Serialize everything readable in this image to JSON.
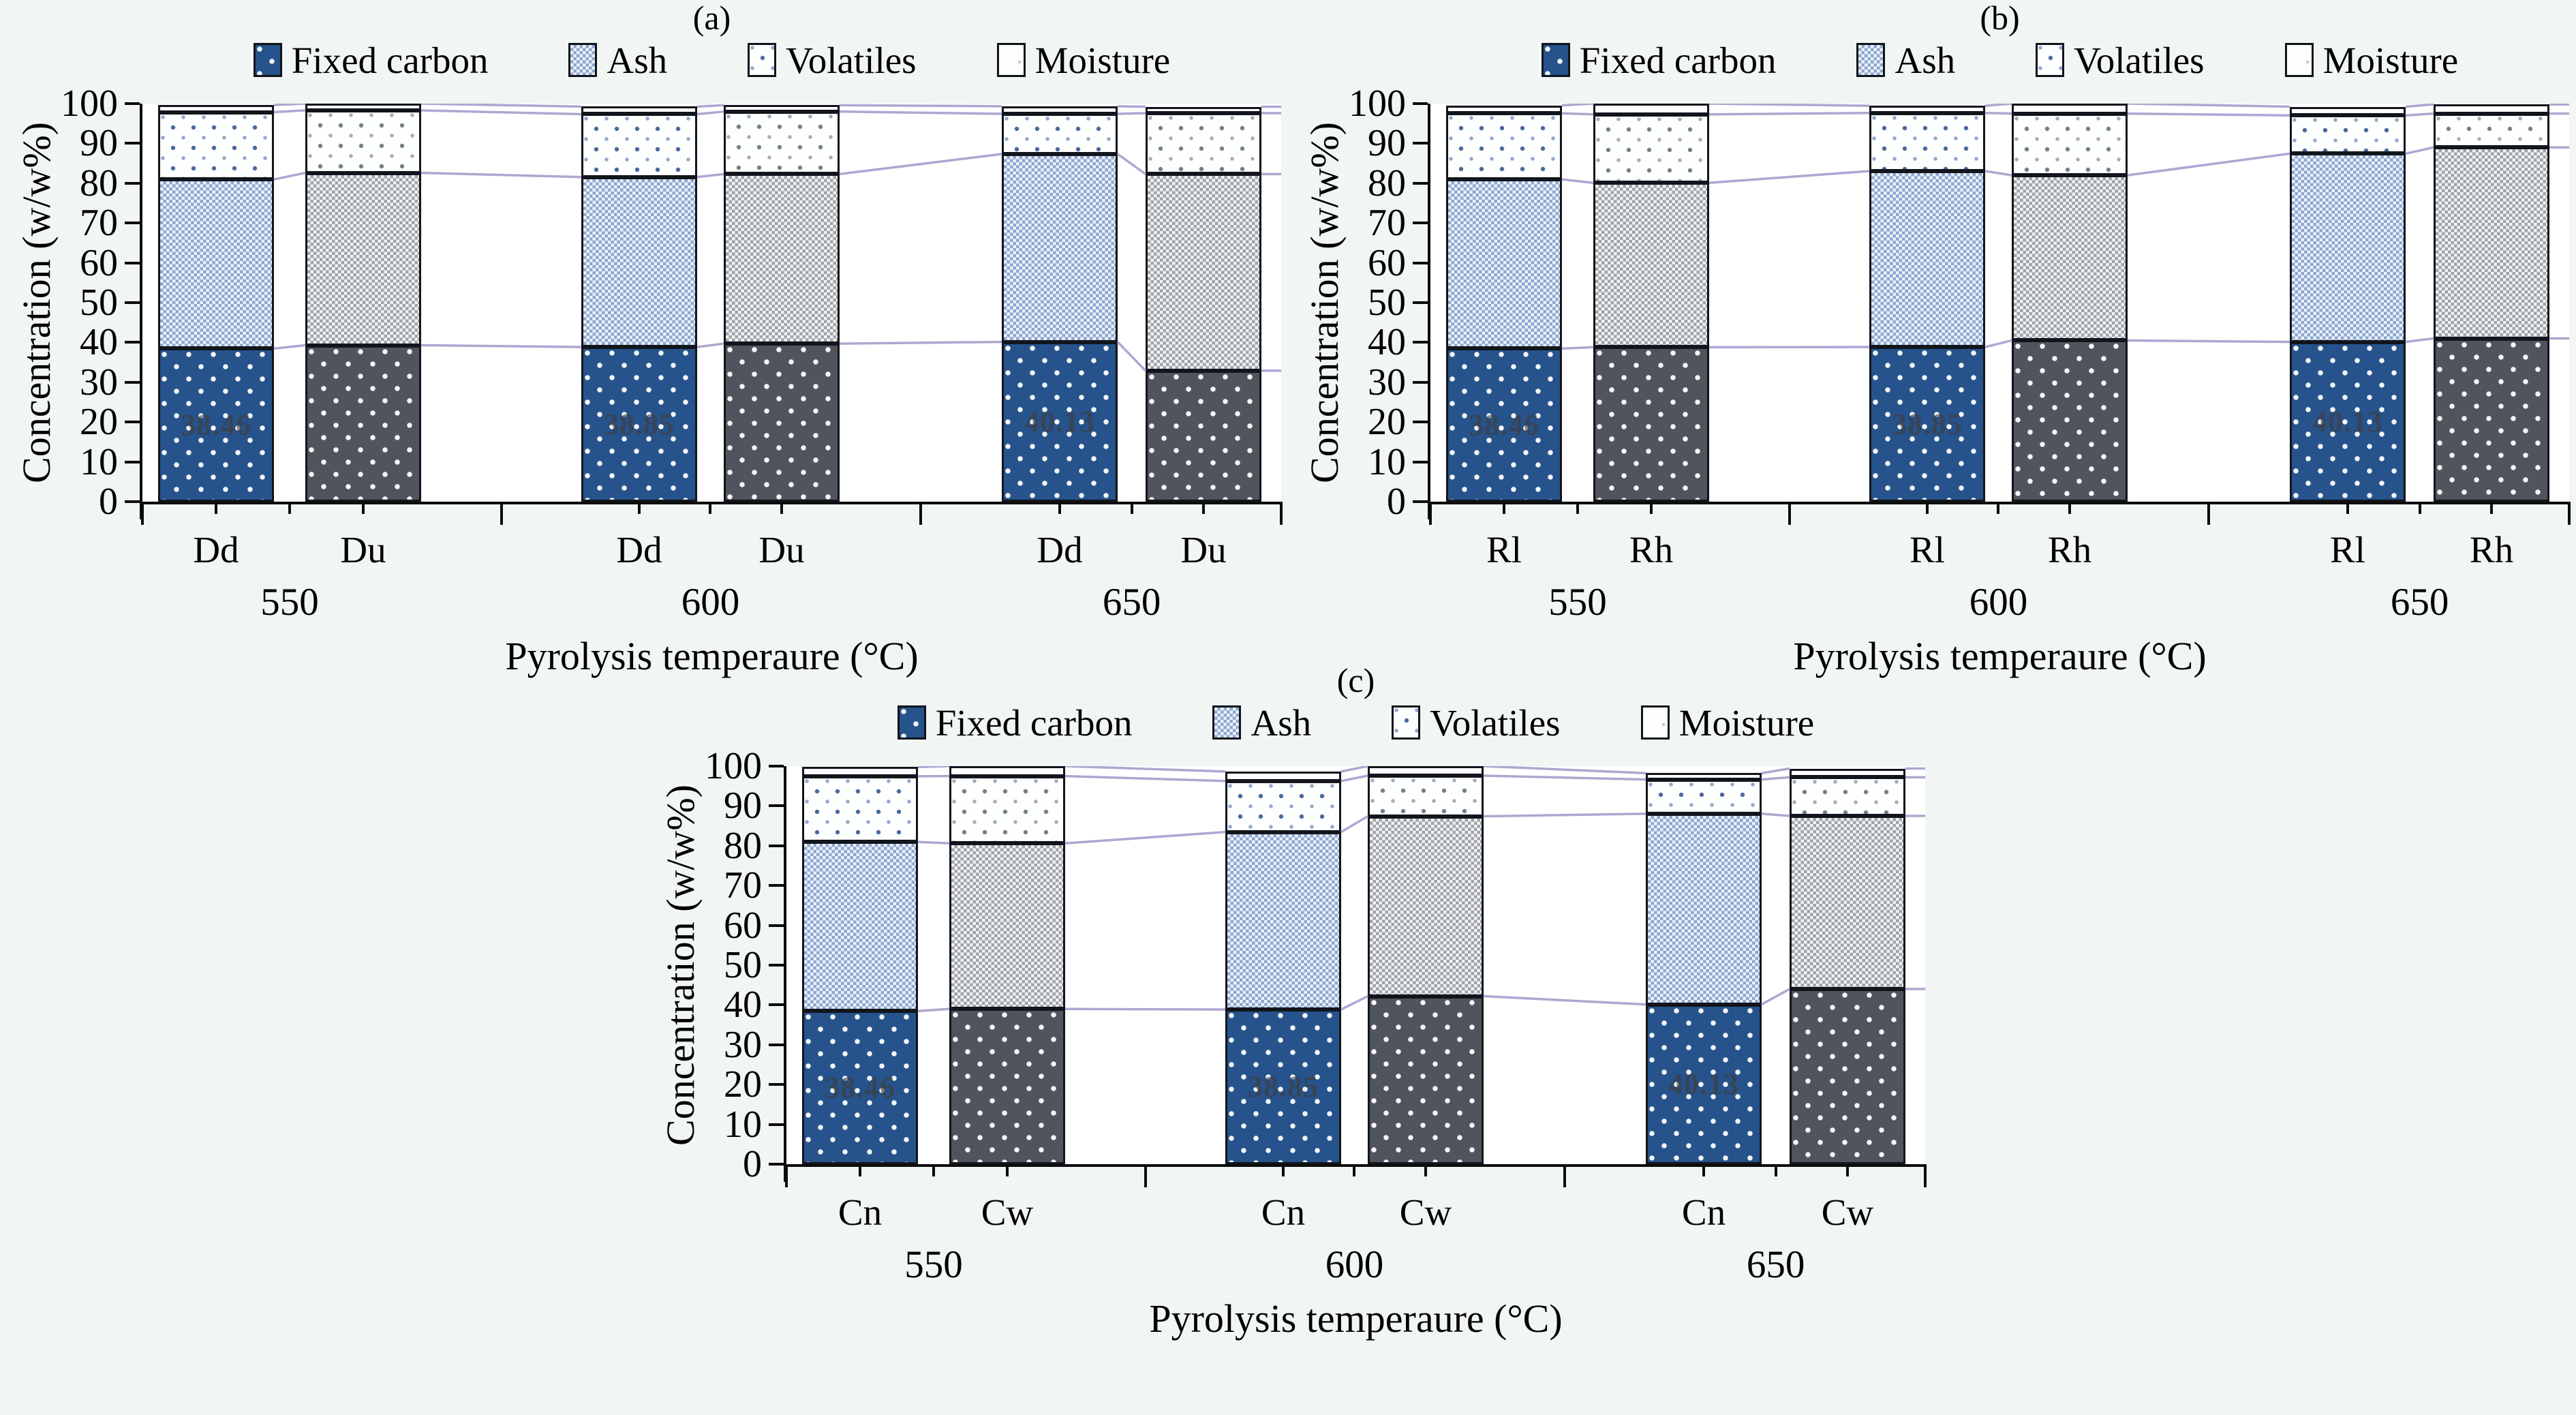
{
  "colors": {
    "background": "#F1F5F3",
    "plot_background": "#FFFFFF",
    "axis": "#0C0C0C",
    "fixed_carbon_blue": "#26538B",
    "fixed_carbon_gray": "#50555D",
    "ash_blue": "#8CA8D0",
    "ash_gray": "#9FA4A9",
    "volatiles_dot_blue": "#49679C",
    "volatiles_dot_gray": "#767D88",
    "connector_line": "#A79DCE"
  },
  "chart_data": [
    {
      "panel_label": "(a)",
      "type": "bar",
      "stacked": true,
      "grid": false,
      "legend_position": "top",
      "legend": [
        "Fixed carbon",
        "Ash",
        "Volatiles",
        "Moisture"
      ],
      "series_order": [
        "fixed_carbon",
        "ash",
        "volatiles",
        "moisture"
      ],
      "xlabel": "Pyrolysis temperaure (°C)",
      "ylabel": "Concentration (w/w%)",
      "ylim": [
        0,
        100
      ],
      "yticks": [
        "0",
        "10",
        "20",
        "30",
        "40",
        "50",
        "60",
        "70",
        "80",
        "90",
        "100"
      ],
      "groups": [
        {
          "category": "550",
          "bars": [
            {
              "label": "Dd",
              "palette": "blue",
              "fc_label": "38.46",
              "values": {
                "fixed_carbon": 38.46,
                "ash": 42.5,
                "volatiles": 16.9,
                "moisture": 1.8
              }
            },
            {
              "label": "Du",
              "palette": "gray",
              "fc_label": "",
              "values": {
                "fixed_carbon": 39.3,
                "ash": 43.3,
                "volatiles": 15.7,
                "moisture": 1.7
              }
            }
          ]
        },
        {
          "category": "600",
          "bars": [
            {
              "label": "Dd",
              "palette": "blue",
              "fc_label": "38.85",
              "values": {
                "fixed_carbon": 38.85,
                "ash": 42.7,
                "volatiles": 15.8,
                "moisture": 1.9
              }
            },
            {
              "label": "Du",
              "palette": "gray",
              "fc_label": "",
              "values": {
                "fixed_carbon": 39.7,
                "ash": 42.6,
                "volatiles": 15.7,
                "moisture": 1.6
              }
            }
          ]
        },
        {
          "category": "650",
          "bars": [
            {
              "label": "Dd",
              "palette": "blue",
              "fc_label": "40.13",
              "values": {
                "fixed_carbon": 40.13,
                "ash": 47.2,
                "volatiles": 10.1,
                "moisture": 1.9
              }
            },
            {
              "label": "Du",
              "palette": "gray",
              "fc_label": "",
              "values": {
                "fixed_carbon": 32.9,
                "ash": 49.4,
                "volatiles": 15.3,
                "moisture": 1.6
              }
            }
          ]
        }
      ]
    },
    {
      "panel_label": "(b)",
      "type": "bar",
      "stacked": true,
      "grid": false,
      "legend_position": "top",
      "legend": [
        "Fixed carbon",
        "Ash",
        "Volatiles",
        "Moisture"
      ],
      "series_order": [
        "fixed_carbon",
        "ash",
        "volatiles",
        "moisture"
      ],
      "xlabel": "Pyrolysis temperaure (°C)",
      "ylabel": "Concentration (w/w%)",
      "ylim": [
        0,
        100
      ],
      "yticks": [
        "0",
        "10",
        "20",
        "30",
        "40",
        "50",
        "60",
        "70",
        "80",
        "90",
        "100"
      ],
      "groups": [
        {
          "category": "550",
          "bars": [
            {
              "label": "Rl",
              "palette": "blue",
              "fc_label": "38.46",
              "values": {
                "fixed_carbon": 38.46,
                "ash": 42.5,
                "volatiles": 16.6,
                "moisture": 2.0
              }
            },
            {
              "label": "Rh",
              "palette": "gray",
              "fc_label": "",
              "values": {
                "fixed_carbon": 38.8,
                "ash": 41.3,
                "volatiles": 17.2,
                "moisture": 2.7
              }
            }
          ]
        },
        {
          "category": "600",
          "bars": [
            {
              "label": "Rl",
              "palette": "blue",
              "fc_label": "38.85",
              "values": {
                "fixed_carbon": 38.85,
                "ash": 44.2,
                "volatiles": 14.6,
                "moisture": 1.8
              }
            },
            {
              "label": "Rh",
              "palette": "gray",
              "fc_label": "",
              "values": {
                "fixed_carbon": 40.5,
                "ash": 41.5,
                "volatiles": 15.5,
                "moisture": 2.5
              }
            }
          ]
        },
        {
          "category": "650",
          "bars": [
            {
              "label": "Rl",
              "palette": "blue",
              "fc_label": "40.13",
              "values": {
                "fixed_carbon": 40.13,
                "ash": 47.3,
                "volatiles": 9.6,
                "moisture": 2.2
              }
            },
            {
              "label": "Rh",
              "palette": "gray",
              "fc_label": "",
              "values": {
                "fixed_carbon": 41.0,
                "ash": 48.0,
                "volatiles": 8.5,
                "moisture": 2.3
              }
            }
          ]
        }
      ]
    },
    {
      "panel_label": "(c)",
      "type": "bar",
      "stacked": true,
      "grid": false,
      "legend_position": "top",
      "legend": [
        "Fixed carbon",
        "Ash",
        "Volatiles",
        "Moisture"
      ],
      "series_order": [
        "fixed_carbon",
        "ash",
        "volatiles",
        "moisture"
      ],
      "xlabel": "Pyrolysis temperaure (°C)",
      "ylabel": "Concentration (w/w%)",
      "ylim": [
        0,
        100
      ],
      "yticks": [
        "0",
        "10",
        "20",
        "30",
        "40",
        "50",
        "60",
        "70",
        "80",
        "90",
        "100"
      ],
      "groups": [
        {
          "category": "550",
          "bars": [
            {
              "label": "Cn",
              "palette": "blue",
              "fc_label": "38.46",
              "values": {
                "fixed_carbon": 38.46,
                "ash": 42.5,
                "volatiles": 16.5,
                "moisture": 2.3
              }
            },
            {
              "label": "Cw",
              "palette": "gray",
              "fc_label": "",
              "values": {
                "fixed_carbon": 39.0,
                "ash": 41.6,
                "volatiles": 16.9,
                "moisture": 2.5
              }
            }
          ]
        },
        {
          "category": "600",
          "bars": [
            {
              "label": "Cn",
              "palette": "blue",
              "fc_label": "38.85",
              "values": {
                "fixed_carbon": 38.85,
                "ash": 44.6,
                "volatiles": 12.8,
                "moisture": 2.4
              }
            },
            {
              "label": "Cw",
              "palette": "gray",
              "fc_label": "",
              "values": {
                "fixed_carbon": 42.2,
                "ash": 45.2,
                "volatiles": 10.2,
                "moisture": 2.4
              }
            }
          ]
        },
        {
          "category": "650",
          "bars": [
            {
              "label": "Cn",
              "palette": "blue",
              "fc_label": "40.13",
              "values": {
                "fixed_carbon": 40.13,
                "ash": 47.9,
                "volatiles": 8.6,
                "moisture": 1.6
              }
            },
            {
              "label": "Cw",
              "palette": "gray",
              "fc_label": "",
              "values": {
                "fixed_carbon": 44.0,
                "ash": 43.5,
                "volatiles": 9.7,
                "moisture": 2.2
              }
            }
          ]
        }
      ]
    }
  ]
}
